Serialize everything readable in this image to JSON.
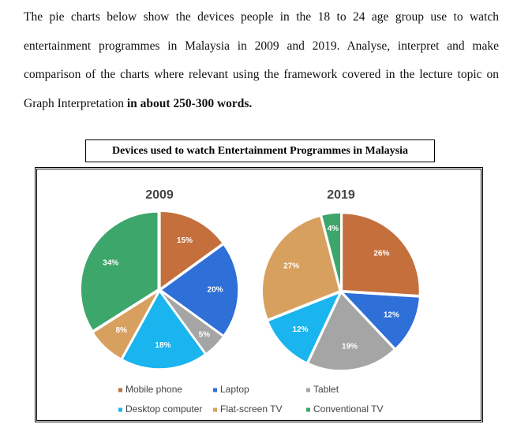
{
  "prompt": {
    "text": "The pie charts below show the devices people in the 18 to 24 age group use to watch entertainment programmes in Malaysia in 2009 and 2019. Analyse, interpret and make comparison of the charts where relevant using the framework covered in the lecture topic on Graph Interpretation",
    "bold": "in about 250-300 words."
  },
  "figure_title": "Devices used to watch Entertainment Programmes in Malaysia",
  "chart_data": [
    {
      "type": "pie",
      "title": "2009",
      "categories": [
        "Mobile phone",
        "Laptop",
        "Tablet",
        "Desktop computer",
        "Flat-screen TV",
        "Conventional TV"
      ],
      "colors": [
        "#c46f3c",
        "#2e6fd8",
        "#a5a5a5",
        "#1ab4ee",
        "#d8a05e",
        "#3ca66b"
      ],
      "values": [
        15,
        20,
        5,
        18,
        8,
        34
      ],
      "value_labels": [
        "15%",
        "20%",
        "5%",
        "18%",
        "8%",
        "34%"
      ]
    },
    {
      "type": "pie",
      "title": "2019",
      "categories": [
        "Mobile phone",
        "Laptop",
        "Tablet",
        "Desktop computer",
        "Flat-screen TV",
        "Conventional TV"
      ],
      "colors": [
        "#c46f3c",
        "#2e6fd8",
        "#a5a5a5",
        "#1ab4ee",
        "#d8a05e",
        "#3ca66b"
      ],
      "values": [
        26,
        12,
        19,
        12,
        27,
        4
      ],
      "value_labels": [
        "26%",
        "12%",
        "19%",
        "12%",
        "27%",
        "4%"
      ]
    }
  ]
}
